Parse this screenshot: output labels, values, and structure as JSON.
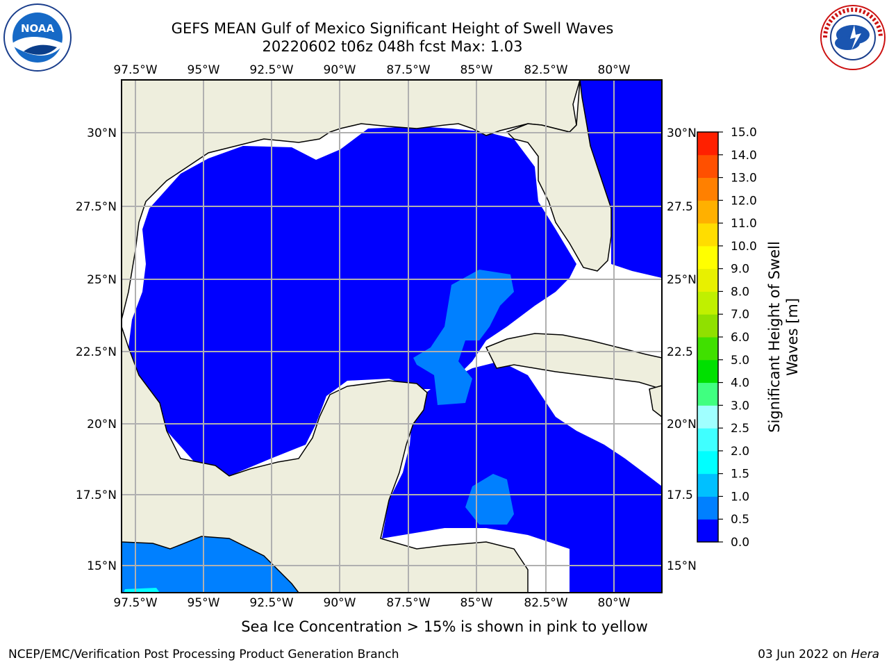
{
  "title": {
    "line1": "GEFS MEAN Gulf of Mexico Significant Height of Swell Waves",
    "line2": "20220602 t06z 048h fcst   Max: 1.03"
  },
  "logos": {
    "left": {
      "icon": "noaa-logo",
      "text": "NOAA",
      "ring_text": "NATIONAL OCEANIC AND ATMOSPHERIC ADMINISTRATION · U.S. DEPARTMENT OF COMMERCE"
    },
    "right": {
      "icon": "nws-logo",
      "ring_text": "NATIONAL WEATHER SERVICE"
    }
  },
  "map": {
    "longitude_labels": [
      "97.5°W",
      "95°W",
      "92.5°W",
      "90°W",
      "87.5°W",
      "85°W",
      "82.5°W",
      "80°W"
    ],
    "latitude_labels_left": [
      "30°N",
      "27.5°N",
      "25°N",
      "22.5°N",
      "20°N",
      "17.5°N",
      "15°N"
    ],
    "latitude_labels_right": [
      "30°N",
      "27.5",
      "25°N",
      "22.5",
      "20°N",
      "17.5",
      "15°N"
    ],
    "colors": {
      "land": "#eeeedd",
      "water_low": "#0000ff",
      "water_mid": "#0080ff",
      "water_hi": "#00ffff",
      "grid": "#b0b0b0"
    }
  },
  "colorbar": {
    "label_line1": "Significant Height of Swell",
    "label_line2": "Waves [m]",
    "ticks": [
      "0.0",
      "0.5",
      "1.0",
      "1.5",
      "2.0",
      "2.5",
      "3.0",
      "4.0",
      "5.0",
      "6.0",
      "7.0",
      "8.0",
      "9.0",
      "10.0",
      "11.0",
      "12.0",
      "13.0",
      "14.0",
      "15.0"
    ],
    "colors": [
      "#0000ff",
      "#0080ff",
      "#00c0ff",
      "#00ffff",
      "#40ffff",
      "#a0ffff",
      "#40ff80",
      "#00e000",
      "#40e000",
      "#90e000",
      "#c0f000",
      "#e8f000",
      "#ffff00",
      "#ffdd00",
      "#ffb000",
      "#ff8000",
      "#ff5000",
      "#ff2000",
      "#ff0000"
    ]
  },
  "note": "Sea Ice Concentration > 15% is shown in pink to yellow",
  "footer": {
    "left": "NCEP/EMC/Verification Post Processing Product Generation Branch",
    "right_prefix": "03 Jun 2022 on ",
    "right_host": "Hera"
  }
}
